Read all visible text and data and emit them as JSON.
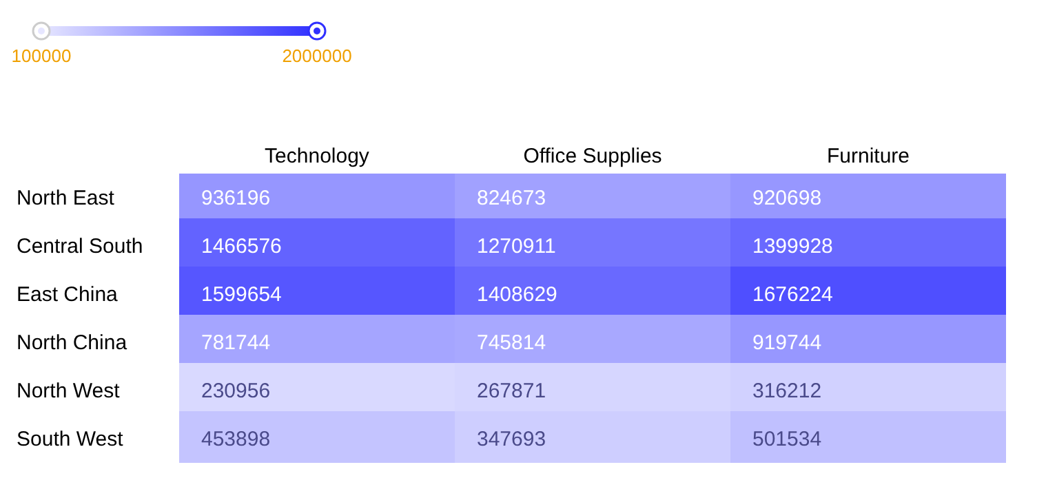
{
  "chart_data": {
    "type": "heatmap",
    "categories": [
      "Technology",
      "Office Supplies",
      "Furniture"
    ],
    "y_categories": [
      "North East",
      "Central South",
      "East China",
      "North China",
      "North West",
      "South West"
    ],
    "cells": [
      [
        936196,
        824673,
        920698
      ],
      [
        1466576,
        1270911,
        1399928
      ],
      [
        1599654,
        1408629,
        1676224
      ],
      [
        781744,
        745814,
        919744
      ],
      [
        230956,
        267871,
        316212
      ],
      [
        453898,
        347693,
        501534
      ]
    ],
    "clim": [
      100000,
      2000000
    ],
    "cticks": [
      100000,
      2000000
    ],
    "data_labels": true
  }
}
